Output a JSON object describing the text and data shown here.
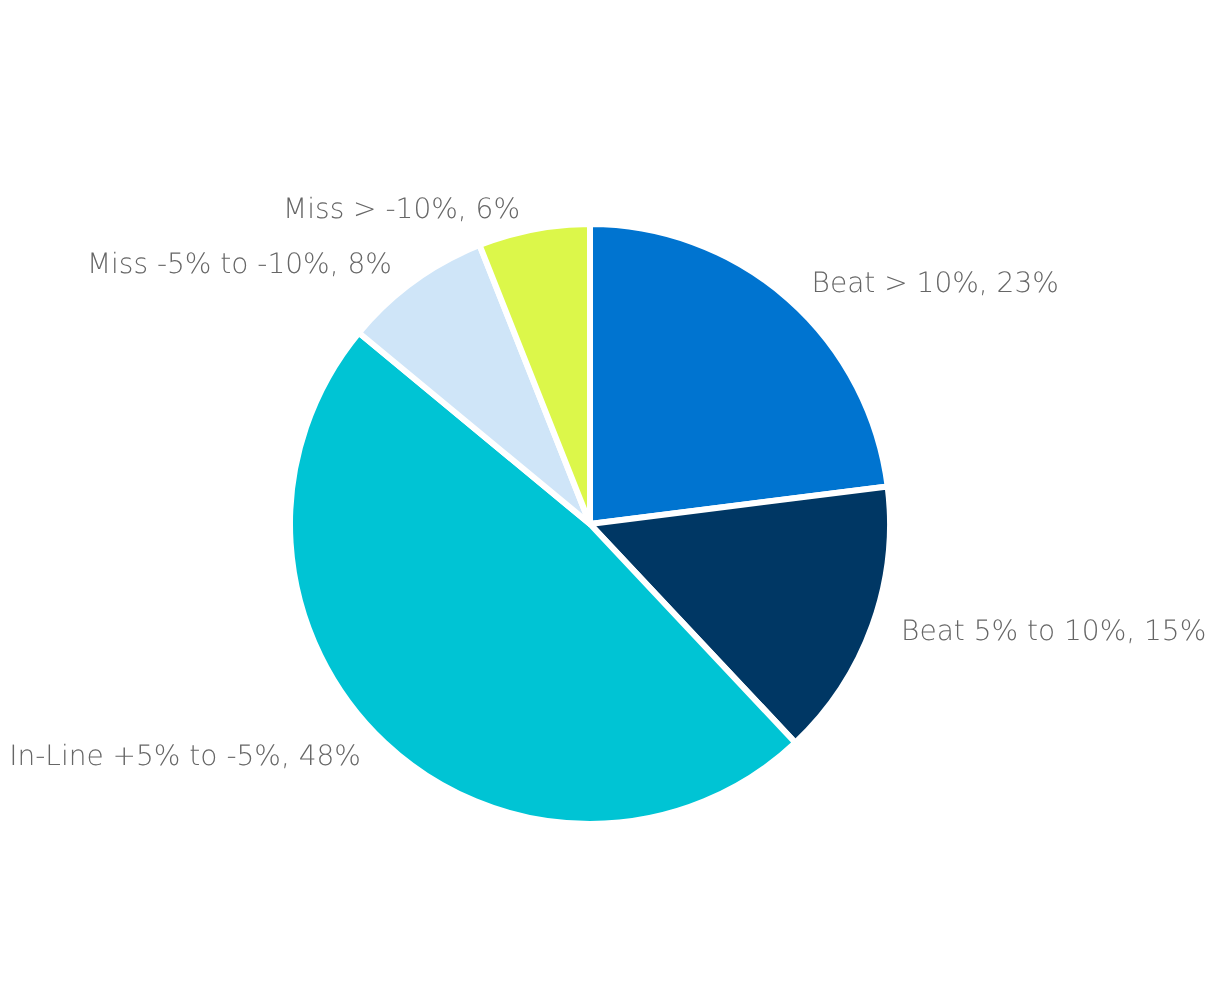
{
  "chart_data": {
    "type": "pie",
    "categories": [
      "Beat > 10%",
      "Beat 5% to 10%",
      "In-Line +5% to -5%",
      "Miss -5% to -10%",
      "Miss > -10%"
    ],
    "values": [
      23,
      15,
      48,
      8,
      6
    ],
    "value_labels": [
      "23%",
      "15%",
      "48%",
      "8%",
      "6%"
    ],
    "colors": [
      "#0074d0",
      "#003764",
      "#00c4d4",
      "#cfe5f8",
      "#dcf74a"
    ],
    "legend": false
  }
}
